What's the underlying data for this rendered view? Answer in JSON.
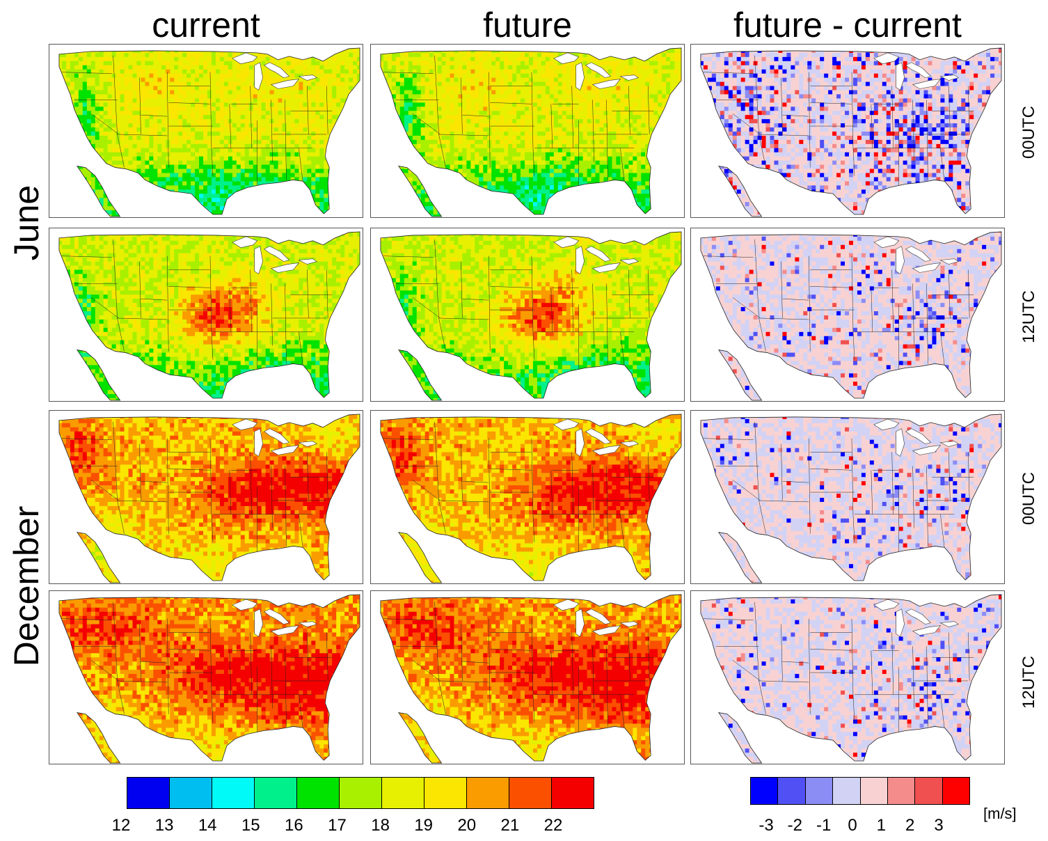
{
  "columns": [
    "current",
    "future",
    "future - current"
  ],
  "months": [
    "June",
    "December"
  ],
  "times": [
    "00UTC",
    "12UTC",
    "00UTC",
    "12UTC"
  ],
  "chart_data": {
    "type": "heatmap",
    "panels": [
      {
        "row": "June 00UTC",
        "column": "current",
        "dominant_range": [
          17,
          19
        ]
      },
      {
        "row": "June 00UTC",
        "column": "future",
        "dominant_range": [
          17,
          19
        ]
      },
      {
        "row": "June 00UTC",
        "column": "future - current",
        "dominant_range": [
          -1,
          1
        ]
      },
      {
        "row": "June 12UTC",
        "column": "current",
        "dominant_range": [
          17,
          19
        ],
        "max_region": [
          20,
          22
        ]
      },
      {
        "row": "June 12UTC",
        "column": "future",
        "dominant_range": [
          17,
          19
        ],
        "max_region": [
          20,
          22
        ]
      },
      {
        "row": "June 12UTC",
        "column": "future - current",
        "dominant_range": [
          -1,
          1
        ]
      },
      {
        "row": "December 00UTC",
        "column": "current",
        "dominant_range": [
          18,
          22
        ]
      },
      {
        "row": "December 00UTC",
        "column": "future",
        "dominant_range": [
          18,
          22
        ]
      },
      {
        "row": "December 00UTC",
        "column": "future - current",
        "dominant_range": [
          -1,
          1
        ]
      },
      {
        "row": "December 12UTC",
        "column": "current",
        "dominant_range": [
          18,
          22
        ]
      },
      {
        "row": "December 12UTC",
        "column": "future",
        "dominant_range": [
          18,
          22
        ]
      },
      {
        "row": "December 12UTC",
        "column": "future - current",
        "dominant_range": [
          -1,
          1
        ]
      }
    ],
    "colorbar_main": {
      "ticks": [
        "12",
        "13",
        "14",
        "15",
        "16",
        "17",
        "18",
        "19",
        "20",
        "21",
        "22"
      ],
      "colors": [
        "#0000f0",
        "#00bef0",
        "#00faf7",
        "#00f08c",
        "#00e300",
        "#a8f000",
        "#e6f000",
        "#fae600",
        "#fa9b00",
        "#fa5000",
        "#f50000"
      ]
    },
    "colorbar_diff": {
      "ticks": [
        "-3",
        "-2",
        "-1",
        "0",
        "1",
        "2",
        "3"
      ],
      "colors": [
        "#0000ff",
        "#5050f5",
        "#8c8cf5",
        "#d2d2f5",
        "#f8d2d2",
        "#f58c8c",
        "#f05050",
        "#ff0000"
      ],
      "unit": "[m/s]"
    }
  }
}
